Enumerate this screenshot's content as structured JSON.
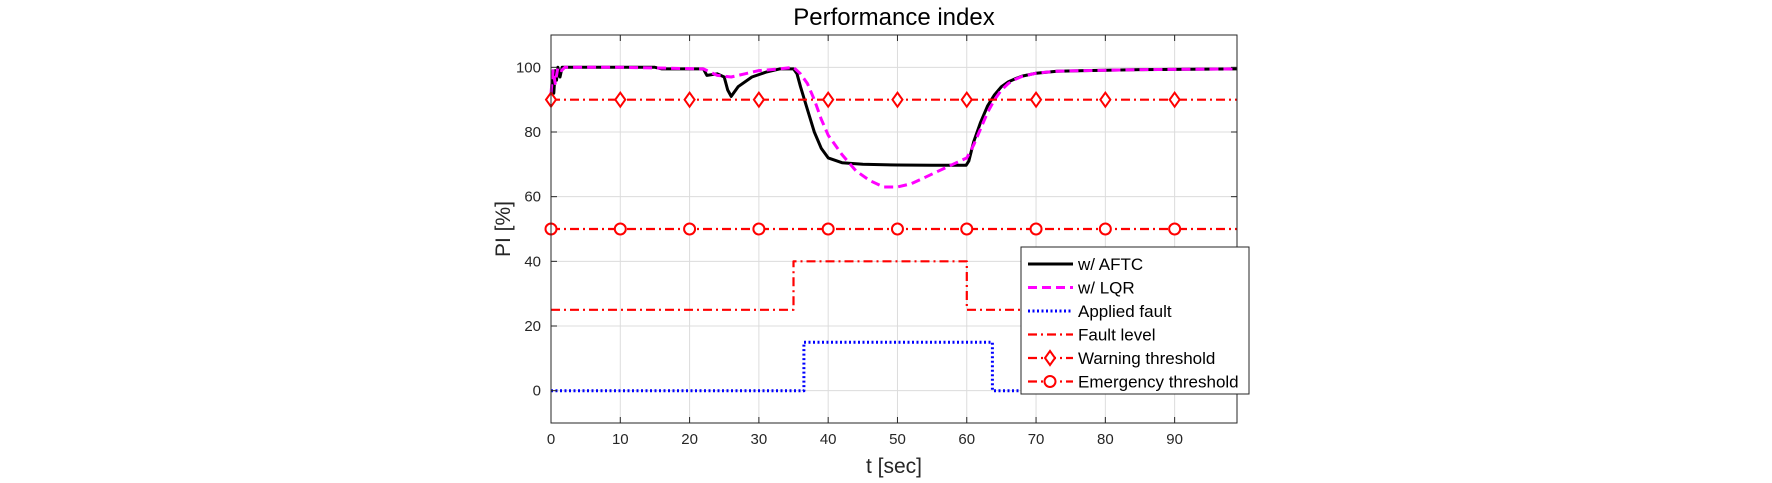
{
  "chart_data": {
    "type": "line",
    "title": "Performance index",
    "xlabel": "t [sec]",
    "ylabel": "PI [%]",
    "xlim": [
      0,
      99
    ],
    "ylim": [
      -10,
      110
    ],
    "xticks": [
      0,
      10,
      20,
      30,
      40,
      50,
      60,
      70,
      80,
      90
    ],
    "yticks": [
      0,
      20,
      40,
      60,
      80,
      100
    ],
    "grid": true,
    "legend_position": "lower-right",
    "series": [
      {
        "name": "w/ AFTC",
        "color": "#000000",
        "style": "solid",
        "marker": "none",
        "x": [
          0,
          0.2,
          0.4,
          0.6,
          0.8,
          1.0,
          1.3,
          1.6,
          2,
          5,
          10,
          15,
          16,
          22,
          22.5,
          24,
          25,
          25.5,
          26,
          27,
          29,
          31,
          33,
          35,
          35.5,
          36,
          37,
          38,
          39,
          40,
          42,
          45,
          50,
          55,
          59.9,
          60.3,
          61,
          62,
          63,
          64,
          65,
          66,
          67,
          68,
          70,
          73,
          77,
          85,
          99
        ],
        "y": [
          88,
          98,
          92,
          99,
          96,
          100,
          97,
          100,
          100,
          100,
          100,
          100,
          99.5,
          99.5,
          97.5,
          98,
          97,
          93,
          91,
          94,
          97,
          98.5,
          99.5,
          99.5,
          98,
          94,
          87,
          80,
          75,
          72,
          70.5,
          70,
          69.8,
          69.7,
          69.7,
          71,
          77,
          83,
          88,
          91.5,
          94,
          95.5,
          96.5,
          97.3,
          98.2,
          98.8,
          99,
          99.3,
          99.5
        ]
      },
      {
        "name": "w/ LQR",
        "color": "#ff00ff",
        "style": "dashed",
        "marker": "none",
        "x": [
          0,
          0.3,
          0.6,
          1.0,
          1.5,
          2,
          10,
          22,
          24,
          26,
          28,
          30,
          33,
          35,
          36,
          37,
          38,
          39,
          40,
          42,
          44,
          46,
          48,
          50,
          52,
          54,
          56,
          58,
          60,
          61,
          62,
          63,
          64,
          65,
          66,
          67,
          68,
          70,
          73,
          77,
          85,
          99
        ],
        "y": [
          92,
          99,
          95,
          100,
          99,
          100,
          100,
          99.5,
          97.5,
          97,
          98,
          99,
          99.5,
          100,
          98,
          95,
          90,
          84,
          79,
          73,
          68,
          65,
          63,
          63,
          64,
          66,
          68,
          70,
          72,
          76,
          81,
          86,
          90,
          93,
          95,
          96.3,
          97.2,
          98.2,
          98.8,
          99,
          99.3,
          99.5
        ]
      },
      {
        "name": "Applied fault",
        "color": "#0000ff",
        "style": "dotted",
        "marker": "none",
        "x": [
          0,
          36.5,
          36.5,
          63.7,
          63.7,
          99
        ],
        "y": [
          0,
          0,
          15,
          15,
          0,
          0
        ]
      },
      {
        "name": "Fault level",
        "color": "#ff0000",
        "style": "dashdot",
        "marker": "none",
        "x": [
          0,
          35,
          35,
          60,
          60,
          99
        ],
        "y": [
          25,
          25,
          40,
          40,
          25,
          25
        ]
      },
      {
        "name": "Warning threshold",
        "color": "#ff0000",
        "style": "dashdot",
        "marker": "diamond",
        "x": [
          0,
          10,
          20,
          30,
          40,
          50,
          60,
          70,
          80,
          90,
          99
        ],
        "y": [
          90,
          90,
          90,
          90,
          90,
          90,
          90,
          90,
          90,
          90,
          90
        ]
      },
      {
        "name": "Emergency threshold",
        "color": "#ff0000",
        "style": "dashdot",
        "marker": "circle",
        "x": [
          0,
          10,
          20,
          30,
          40,
          50,
          60,
          70,
          80,
          90,
          99
        ],
        "y": [
          50,
          50,
          50,
          50,
          50,
          50,
          50,
          50,
          50,
          50,
          50
        ]
      }
    ]
  }
}
